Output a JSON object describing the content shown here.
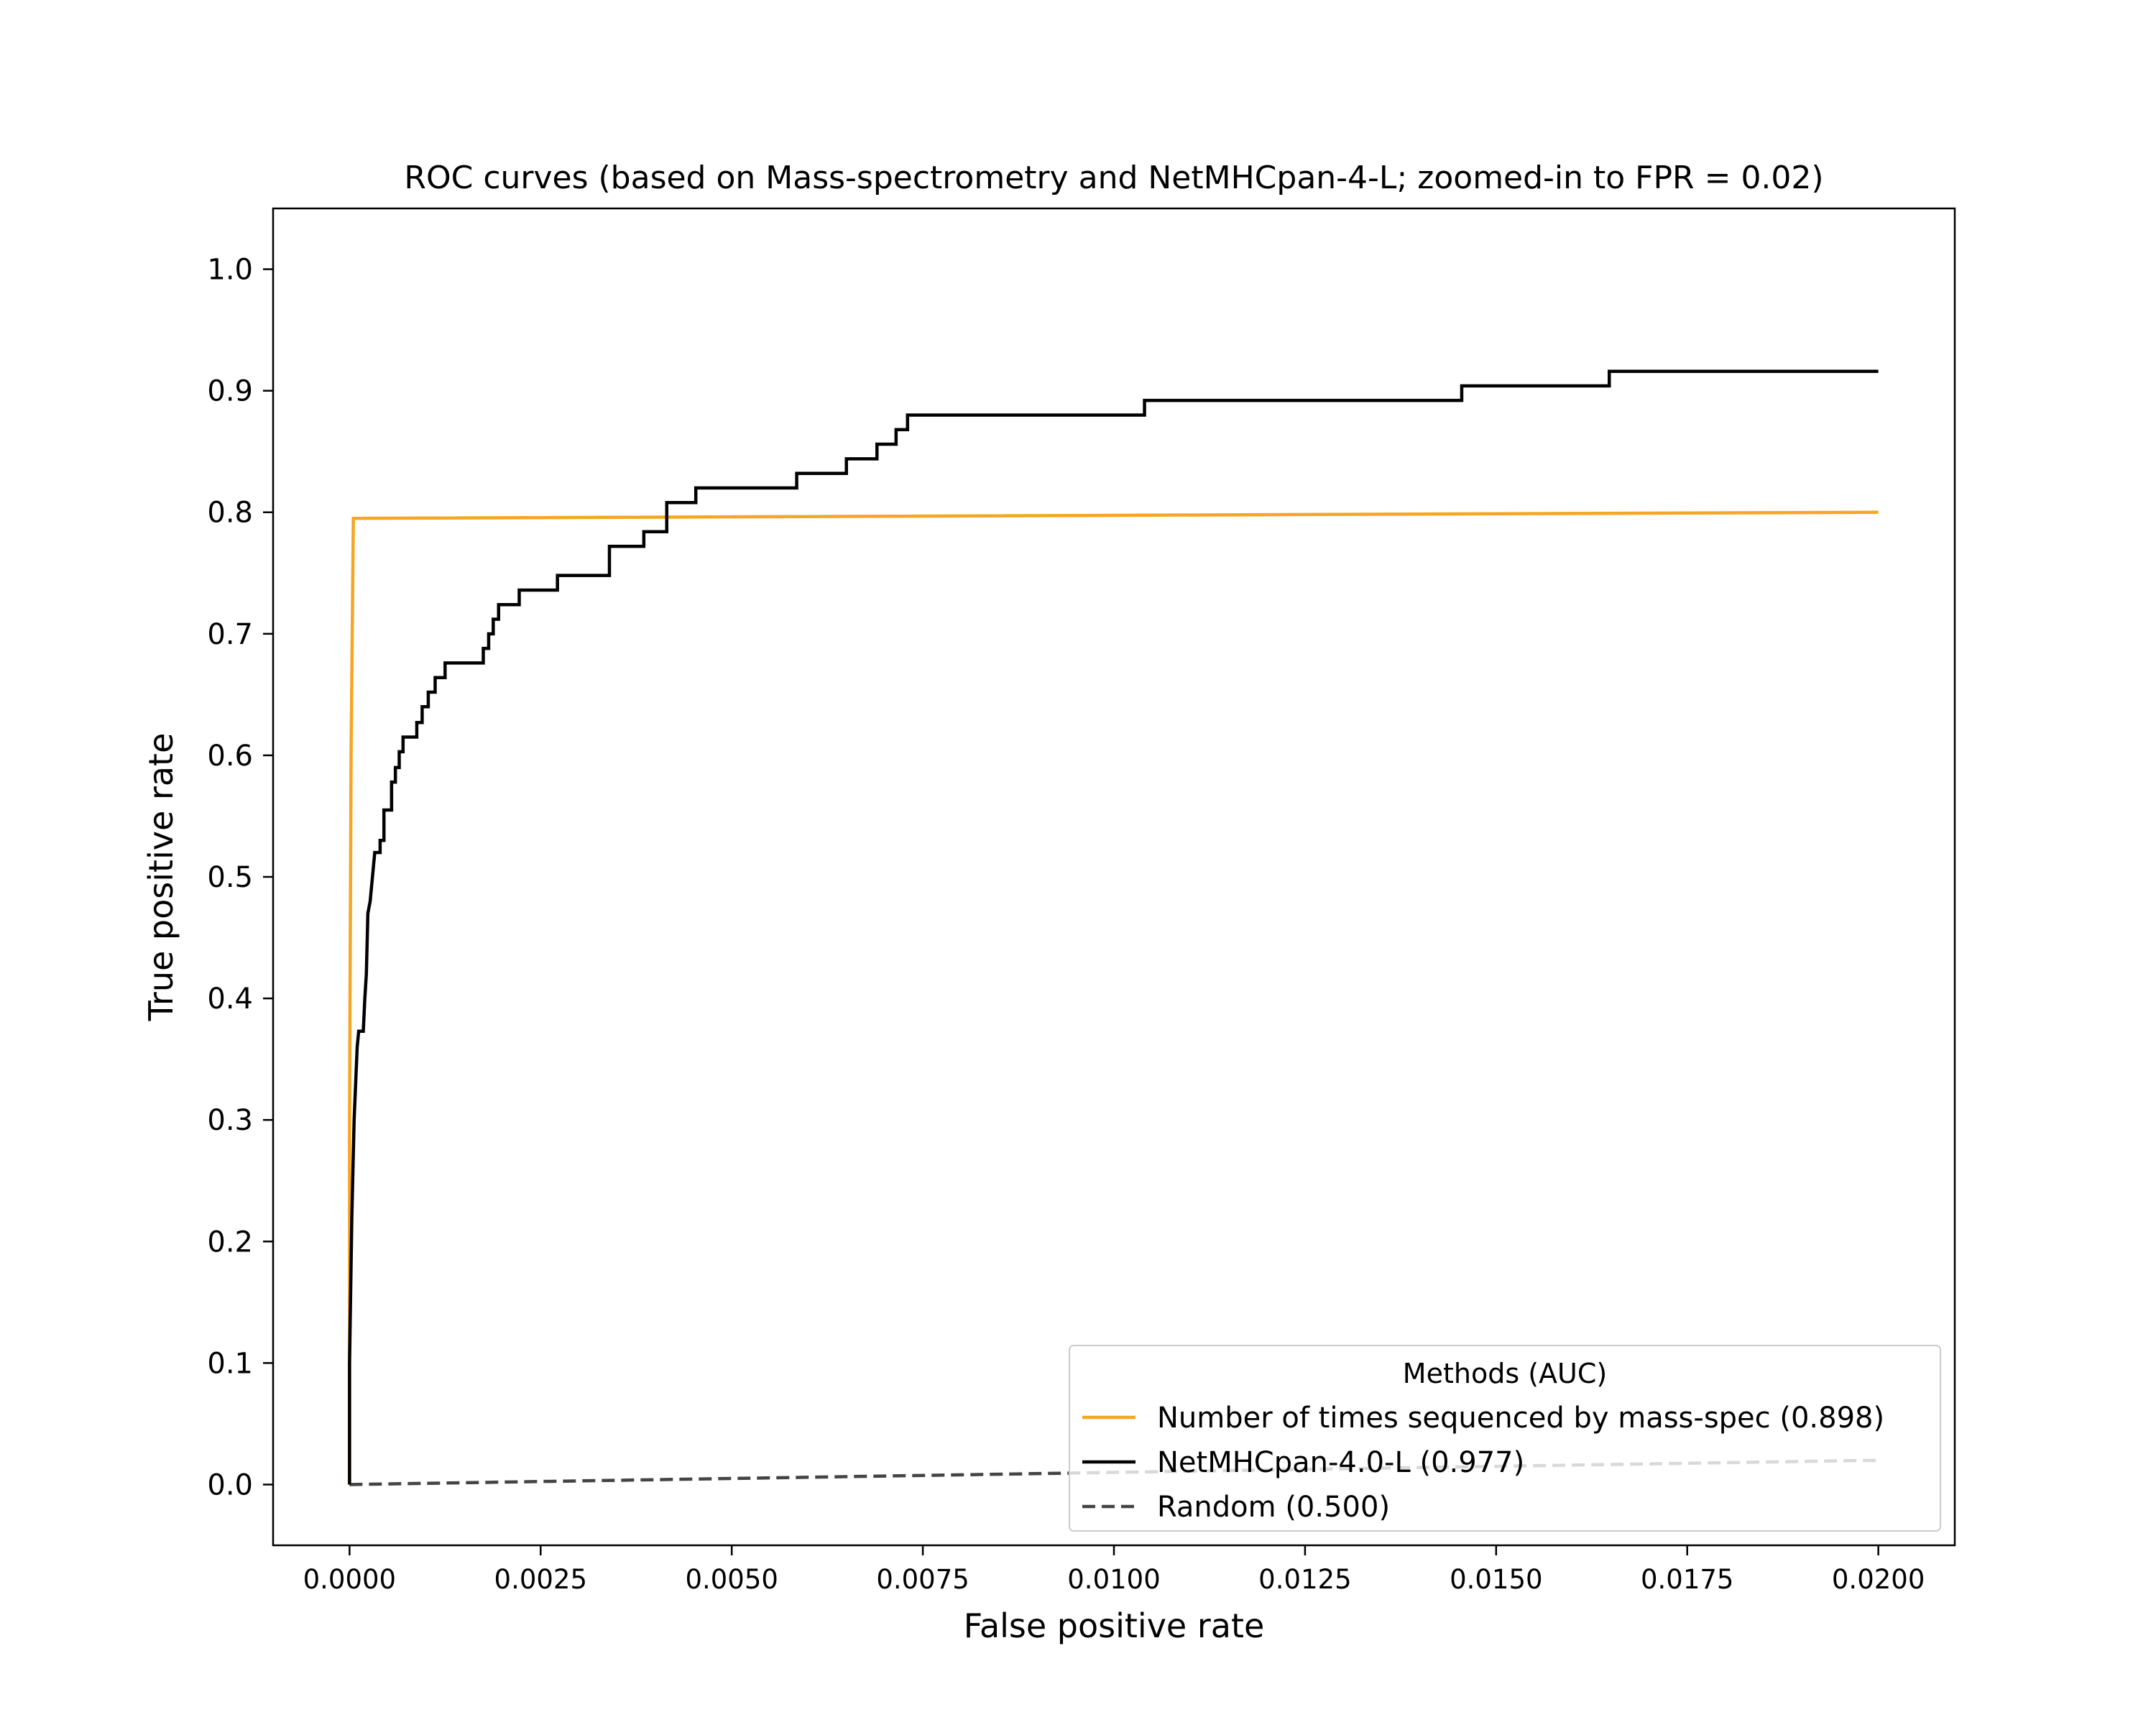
{
  "chart_data": {
    "type": "line",
    "title": "ROC curves (based on Mass-spectrometry and NetMHCpan-4-L; zoomed-in to FPR = 0.02)",
    "xlabel": "False positive rate",
    "ylabel": "True positive rate",
    "xlim": [
      -0.001,
      0.021
    ],
    "ylim": [
      -0.05,
      1.05
    ],
    "xticks": [
      0.0,
      0.0025,
      0.005,
      0.0075,
      0.01,
      0.0125,
      0.015,
      0.0175,
      0.02
    ],
    "xtick_labels": [
      "0.0000",
      "0.0025",
      "0.0050",
      "0.0075",
      "0.0100",
      "0.0125",
      "0.0150",
      "0.0175",
      "0.0200"
    ],
    "yticks": [
      0.0,
      0.1,
      0.2,
      0.3,
      0.4,
      0.5,
      0.6,
      0.7,
      0.8,
      0.9,
      1.0
    ],
    "ytick_labels": [
      "0.0",
      "0.1",
      "0.2",
      "0.3",
      "0.4",
      "0.5",
      "0.6",
      "0.7",
      "0.8",
      "0.9",
      "1.0"
    ],
    "grid": false,
    "legend": {
      "title": "Methods (AUC)",
      "placement": "lower right"
    },
    "series": [
      {
        "name": "Number of times sequenced by mass-spec (0.898)",
        "color": "#f5a623",
        "style": "solid",
        "points": [
          [
            0.0,
            0.0
          ],
          [
            0.0,
            0.3
          ],
          [
            2e-05,
            0.6
          ],
          [
            5e-05,
            0.795
          ],
          [
            0.02,
            0.8
          ]
        ]
      },
      {
        "name": "NetMHCpan-4.0-L (0.977)",
        "color": "#000000",
        "style": "solid",
        "points": [
          [
            0.0,
            0.0
          ],
          [
            0.0,
            0.1
          ],
          [
            3e-05,
            0.22
          ],
          [
            6e-05,
            0.3
          ],
          [
            0.0001,
            0.36
          ],
          [
            0.00012,
            0.373
          ],
          [
            0.00018,
            0.373
          ],
          [
            0.0002,
            0.4
          ],
          [
            0.00022,
            0.42
          ],
          [
            0.00024,
            0.47
          ],
          [
            0.00027,
            0.48
          ],
          [
            0.0003,
            0.5
          ],
          [
            0.00033,
            0.52
          ],
          [
            0.0004,
            0.52
          ],
          [
            0.0004,
            0.53
          ],
          [
            0.00045,
            0.53
          ],
          [
            0.00045,
            0.555
          ],
          [
            0.00055,
            0.555
          ],
          [
            0.00055,
            0.578
          ],
          [
            0.0006,
            0.578
          ],
          [
            0.0006,
            0.59
          ],
          [
            0.00065,
            0.59
          ],
          [
            0.00065,
            0.603
          ],
          [
            0.0007,
            0.603
          ],
          [
            0.0007,
            0.615
          ],
          [
            0.00088,
            0.615
          ],
          [
            0.00088,
            0.627
          ],
          [
            0.00095,
            0.627
          ],
          [
            0.00095,
            0.64
          ],
          [
            0.00103,
            0.64
          ],
          [
            0.00103,
            0.652
          ],
          [
            0.00112,
            0.652
          ],
          [
            0.00112,
            0.664
          ],
          [
            0.00125,
            0.664
          ],
          [
            0.00125,
            0.676
          ],
          [
            0.00175,
            0.676
          ],
          [
            0.00175,
            0.688
          ],
          [
            0.00182,
            0.688
          ],
          [
            0.00182,
            0.7
          ],
          [
            0.00188,
            0.7
          ],
          [
            0.00188,
            0.712
          ],
          [
            0.00195,
            0.712
          ],
          [
            0.00195,
            0.724
          ],
          [
            0.00222,
            0.724
          ],
          [
            0.00222,
            0.736
          ],
          [
            0.00272,
            0.736
          ],
          [
            0.00272,
            0.748
          ],
          [
            0.0034,
            0.748
          ],
          [
            0.0034,
            0.772
          ],
          [
            0.00385,
            0.772
          ],
          [
            0.00385,
            0.784
          ],
          [
            0.00415,
            0.784
          ],
          [
            0.00415,
            0.808
          ],
          [
            0.00453,
            0.808
          ],
          [
            0.00453,
            0.82
          ],
          [
            0.00585,
            0.82
          ],
          [
            0.00585,
            0.832
          ],
          [
            0.0065,
            0.832
          ],
          [
            0.0065,
            0.844
          ],
          [
            0.0069,
            0.844
          ],
          [
            0.0069,
            0.856
          ],
          [
            0.00715,
            0.856
          ],
          [
            0.00715,
            0.868
          ],
          [
            0.0073,
            0.868
          ],
          [
            0.0073,
            0.88
          ],
          [
            0.0104,
            0.88
          ],
          [
            0.0104,
            0.892
          ],
          [
            0.01455,
            0.892
          ],
          [
            0.01455,
            0.904
          ],
          [
            0.01648,
            0.904
          ],
          [
            0.01648,
            0.916
          ],
          [
            0.02,
            0.916
          ]
        ]
      },
      {
        "name": "Random (0.500)",
        "color": "#444444",
        "style": "dashed",
        "points": [
          [
            0.0,
            0.0
          ],
          [
            0.02,
            0.02
          ]
        ]
      }
    ]
  }
}
